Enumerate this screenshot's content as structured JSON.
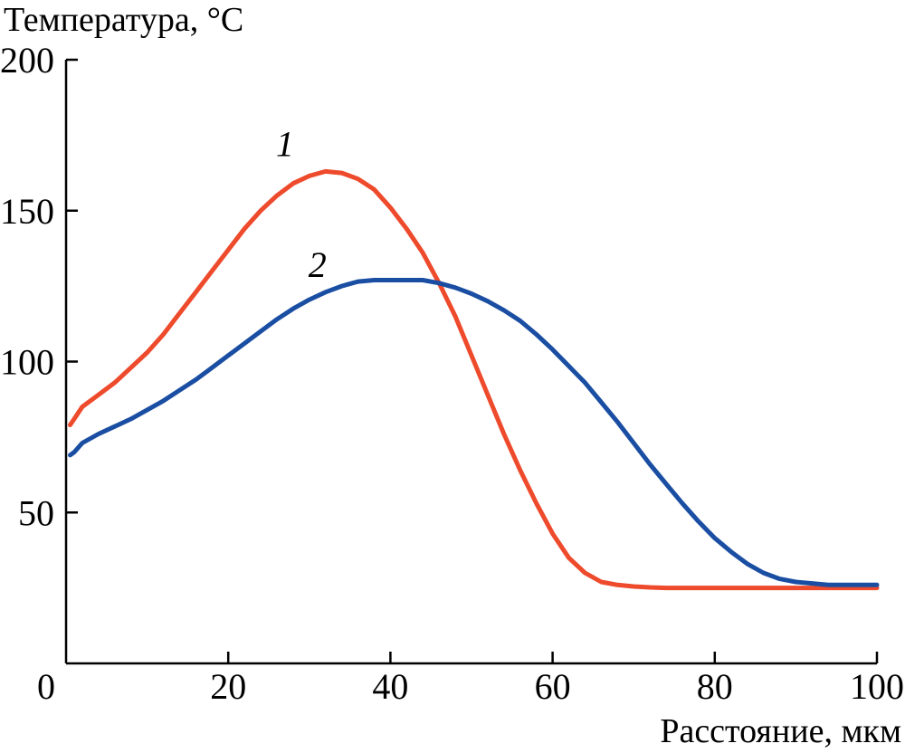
{
  "chart_data": {
    "type": "line",
    "title": "",
    "ylabel": "Температура, °C",
    "xlabel": "Расстояние, мкм",
    "xlim": [
      0,
      100
    ],
    "ylim": [
      0,
      200
    ],
    "x_ticks": [
      0,
      20,
      40,
      60,
      80,
      100
    ],
    "y_ticks": [
      50,
      100,
      150,
      200
    ],
    "grid": false,
    "series": [
      {
        "name": "1",
        "label": "1",
        "color": "#ee4a2c",
        "label_at": [
          27,
          168
        ],
        "x": [
          0.5,
          1,
          2,
          4,
          6,
          8,
          10,
          12,
          14,
          16,
          18,
          20,
          22,
          24,
          26,
          28,
          30,
          32,
          34,
          36,
          38,
          40,
          42,
          44,
          46,
          48,
          50,
          52,
          54,
          56,
          58,
          60,
          62,
          64,
          66,
          68,
          70,
          72,
          74,
          76,
          78,
          80,
          85,
          90,
          95,
          100
        ],
        "y": [
          79,
          81,
          85,
          89,
          93,
          98,
          103,
          109,
          116,
          123,
          130,
          137,
          144,
          150,
          155,
          159,
          161.5,
          163,
          162.5,
          160.5,
          157,
          151,
          144,
          136,
          126,
          115,
          102,
          89,
          76,
          64,
          53,
          43,
          35,
          30,
          27,
          26,
          25.5,
          25.2,
          25,
          25,
          25,
          25,
          25,
          25,
          25,
          25
        ]
      },
      {
        "name": "2",
        "label": "2",
        "color": "#1a4ea2",
        "label_at": [
          31,
          128
        ],
        "x": [
          0.5,
          1,
          2,
          4,
          6,
          8,
          10,
          12,
          14,
          16,
          18,
          20,
          22,
          24,
          26,
          28,
          30,
          32,
          34,
          36,
          38,
          40,
          42,
          44,
          46,
          48,
          50,
          52,
          54,
          56,
          58,
          60,
          62,
          64,
          66,
          68,
          70,
          72,
          74,
          76,
          78,
          80,
          82,
          84,
          86,
          88,
          90,
          92,
          94,
          96,
          98,
          100
        ],
        "y": [
          69,
          70,
          73,
          76,
          78.5,
          81,
          84,
          87,
          90.5,
          94,
          98,
          102,
          106,
          110,
          114,
          117.5,
          120.5,
          123,
          125,
          126.5,
          127,
          127,
          127,
          127,
          126,
          124.5,
          122.5,
          120,
          117,
          113.5,
          109,
          104,
          98.5,
          93,
          86.5,
          80,
          73,
          66,
          59.5,
          53,
          47,
          41.5,
          37,
          33,
          30,
          28,
          27,
          26.5,
          26,
          26,
          26,
          26
        ]
      }
    ]
  }
}
